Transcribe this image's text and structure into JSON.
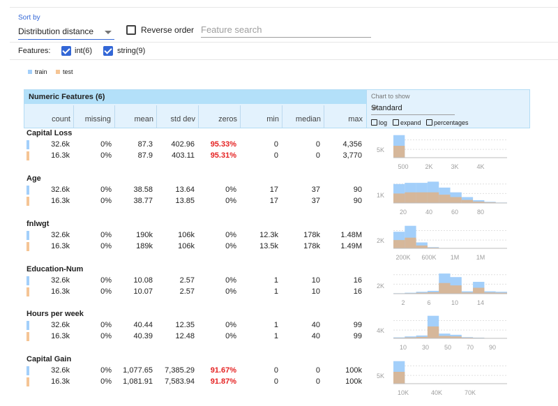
{
  "sort": {
    "label": "Sort by",
    "value": "Distribution distance"
  },
  "reverse_order_label": "Reverse order",
  "search": {
    "placeholder": "Feature search"
  },
  "features_bar": {
    "label": "Features:",
    "int_label": "int(6)",
    "string_label": "string(9)"
  },
  "legend": {
    "train": "train",
    "test": "test"
  },
  "colors": {
    "train": "#a3cffa",
    "test": "#f5c595",
    "overlap": "#d6b79a",
    "red": "#e52222"
  },
  "table": {
    "title": "Numeric Features (6)",
    "columns": [
      "count",
      "missing",
      "mean",
      "std dev",
      "zeros",
      "min",
      "median",
      "max"
    ]
  },
  "chart_options": {
    "label": "Chart to show",
    "selected": "Standard",
    "options": [
      "log",
      "expand",
      "percentages"
    ]
  },
  "features": [
    {
      "name": "Capital Loss",
      "train": {
        "count": "32.6k",
        "missing": "0%",
        "mean": "87.3",
        "std": "402.96",
        "zeros": "95.33%",
        "min": "0",
        "median": "0",
        "max": "4,356"
      },
      "test": {
        "count": "16.3k",
        "missing": "0%",
        "mean": "87.9",
        "std": "403.11",
        "zeros": "95.31%",
        "min": "0",
        "median": "0",
        "max": "3,770"
      },
      "zeros_highlight": true,
      "chart": {
        "ylabel": "5K",
        "xticks": [
          "500",
          "2K",
          "3K",
          "4K"
        ],
        "train": [
          0.95,
          0,
          0,
          0,
          0,
          0,
          0,
          0,
          0,
          0
        ],
        "test": [
          0.5,
          0,
          0,
          0,
          0,
          0,
          0,
          0,
          0,
          0
        ],
        "grid": [
          0.35,
          0.75
        ]
      }
    },
    {
      "name": "Age",
      "train": {
        "count": "32.6k",
        "missing": "0%",
        "mean": "38.58",
        "std": "13.64",
        "zeros": "0%",
        "min": "17",
        "median": "37",
        "max": "90"
      },
      "test": {
        "count": "16.3k",
        "missing": "0%",
        "mean": "38.77",
        "std": "13.85",
        "zeros": "0%",
        "min": "17",
        "median": "37",
        "max": "90"
      },
      "zeros_highlight": false,
      "chart": {
        "ylabel": "1K",
        "xticks": [
          "20",
          "40",
          "60",
          "80"
        ],
        "train": [
          0.8,
          0.85,
          0.85,
          0.9,
          0.65,
          0.45,
          0.25,
          0.12,
          0.05,
          0.02
        ],
        "test": [
          0.4,
          0.45,
          0.45,
          0.45,
          0.35,
          0.25,
          0.13,
          0.06,
          0.03,
          0.01
        ],
        "grid": [
          0.4,
          0.8
        ]
      }
    },
    {
      "name": "fnlwgt",
      "train": {
        "count": "32.6k",
        "missing": "0%",
        "mean": "190k",
        "std": "106k",
        "zeros": "0%",
        "min": "12.3k",
        "median": "178k",
        "max": "1.48M"
      },
      "test": {
        "count": "16.3k",
        "missing": "0%",
        "mean": "189k",
        "std": "106k",
        "zeros": "0%",
        "min": "13.5k",
        "median": "178k",
        "max": "1.49M"
      },
      "zeros_highlight": false,
      "chart": {
        "ylabel": "2K",
        "xticks": [
          "200K",
          "600K",
          "1M",
          "1M"
        ],
        "train": [
          0.7,
          0.95,
          0.25,
          0.05,
          0,
          0,
          0,
          0,
          0,
          0
        ],
        "test": [
          0.35,
          0.45,
          0.12,
          0.03,
          0,
          0,
          0,
          0,
          0,
          0
        ],
        "grid": [
          0.35,
          0.75
        ]
      }
    },
    {
      "name": "Education-Num",
      "train": {
        "count": "32.6k",
        "missing": "0%",
        "mean": "10.08",
        "std": "2.57",
        "zeros": "0%",
        "min": "1",
        "median": "10",
        "max": "16"
      },
      "test": {
        "count": "16.3k",
        "missing": "0%",
        "mean": "10.07",
        "std": "2.57",
        "zeros": "0%",
        "min": "1",
        "median": "10",
        "max": "16"
      },
      "zeros_highlight": false,
      "chart": {
        "ylabel": "2K",
        "xticks": [
          "2",
          "6",
          "10",
          "14"
        ],
        "train": [
          0.02,
          0.04,
          0.08,
          0.12,
          0.85,
          0.7,
          0.1,
          0.5,
          0.1,
          0.08
        ],
        "test": [
          0.01,
          0.02,
          0.04,
          0.06,
          0.45,
          0.35,
          0.05,
          0.25,
          0.05,
          0.04
        ],
        "grid": [
          0.4,
          0.8
        ]
      }
    },
    {
      "name": "Hours per week",
      "train": {
        "count": "32.6k",
        "missing": "0%",
        "mean": "40.44",
        "std": "12.35",
        "zeros": "0%",
        "min": "1",
        "median": "40",
        "max": "99"
      },
      "test": {
        "count": "16.3k",
        "missing": "0%",
        "mean": "40.39",
        "std": "12.48",
        "zeros": "0%",
        "min": "1",
        "median": "40",
        "max": "99"
      },
      "zeros_highlight": false,
      "chart": {
        "ylabel": "4K",
        "xticks": [
          "10",
          "30",
          "50",
          "70",
          "90"
        ],
        "train": [
          0.04,
          0.08,
          0.12,
          0.95,
          0.2,
          0.15,
          0.05,
          0.03,
          0.01,
          0.01
        ],
        "test": [
          0.02,
          0.04,
          0.06,
          0.5,
          0.1,
          0.08,
          0.03,
          0.02,
          0.01,
          0.01
        ],
        "grid": [
          0.35,
          0.75
        ]
      }
    },
    {
      "name": "Capital Gain",
      "train": {
        "count": "32.6k",
        "missing": "0%",
        "mean": "1,077.65",
        "std": "7,385.29",
        "zeros": "91.67%",
        "min": "0",
        "median": "0",
        "max": "100k"
      },
      "test": {
        "count": "16.3k",
        "missing": "0%",
        "mean": "1,081.91",
        "std": "7,583.94",
        "zeros": "91.87%",
        "min": "0",
        "median": "0",
        "max": "100k"
      },
      "zeros_highlight": true,
      "chart": {
        "ylabel": "5K",
        "xticks": [
          "10K",
          "40K",
          "70K"
        ],
        "train": [
          0.95,
          0,
          0,
          0,
          0,
          0,
          0,
          0,
          0,
          0
        ],
        "test": [
          0.5,
          0,
          0,
          0,
          0,
          0,
          0,
          0,
          0,
          0
        ],
        "grid": [
          0.35,
          0.75
        ]
      }
    }
  ]
}
